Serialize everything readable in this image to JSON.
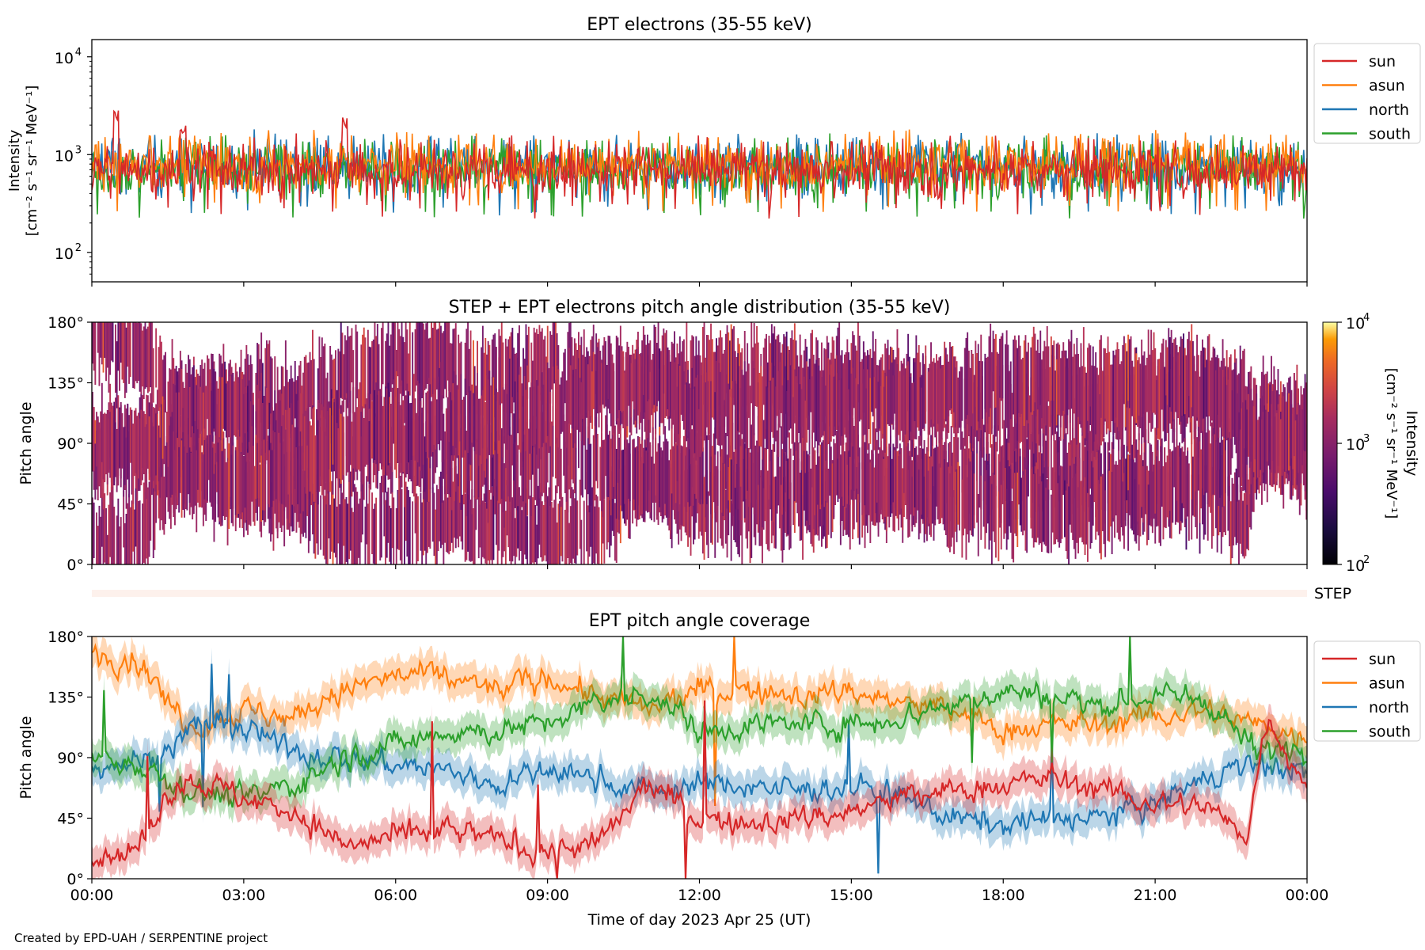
{
  "figure": {
    "credit": "Created by EPD-UAH / SERPENTINE project",
    "colors": {
      "sun": "#d62728",
      "asun": "#ff7f0e",
      "north": "#1f77b4",
      "south": "#2ca02c"
    }
  },
  "chart_data": [
    {
      "type": "line",
      "title": "EPT electrons (35-55 keV)",
      "ylabel": [
        "Intensity",
        "[cm⁻² s⁻¹ sr⁻¹ MeV⁻¹]"
      ],
      "yscale": "log",
      "ylim": [
        50,
        15000
      ],
      "yticks": [
        {
          "value": 100,
          "base": "10",
          "exp": "2"
        },
        {
          "value": 1000,
          "base": "10",
          "exp": "3"
        },
        {
          "value": 10000,
          "base": "10",
          "exp": "4"
        }
      ],
      "xlim_hours": [
        0,
        24
      ],
      "legend": {
        "placement": "outside-right"
      },
      "series": [
        {
          "name": "sun",
          "color": "#d62728",
          "typical": 700,
          "spikes": [
            {
              "t_hours": 0.48,
              "value": 3000
            },
            {
              "t_hours": 5.0,
              "value": 2500
            },
            {
              "t_hours": 1.8,
              "value": 2000
            }
          ]
        },
        {
          "name": "asun",
          "color": "#ff7f0e",
          "typical": 800
        },
        {
          "name": "north",
          "color": "#1f77b4",
          "typical": 750
        },
        {
          "name": "south",
          "color": "#2ca02c",
          "typical": 700
        }
      ]
    },
    {
      "type": "heatmap",
      "title": "STEP + EPT electrons pitch angle distribution (35-55 keV)",
      "ylabel": "Pitch angle",
      "ylim": [
        0,
        180
      ],
      "yticks": [
        "0°",
        "45°",
        "90°",
        "135°",
        "180°"
      ],
      "xlim_hours": [
        0,
        24
      ],
      "colorbar": {
        "label": "Intensity",
        "units": "[cm⁻² s⁻¹ sr⁻¹ MeV⁻¹]",
        "scale": "log",
        "range": [
          100,
          10000
        ],
        "colormap": "inferno",
        "ticks": [
          {
            "base": "10",
            "exp": "2"
          },
          {
            "base": "10",
            "exp": "3"
          },
          {
            "base": "10",
            "exp": "4"
          }
        ]
      },
      "typical_intensity": 700
    },
    {
      "type": "table",
      "strip_label": "STEP"
    },
    {
      "type": "line",
      "title": "EPT pitch angle coverage",
      "ylabel": "Pitch angle",
      "ylim": [
        0,
        180
      ],
      "yticks": [
        "0°",
        "45°",
        "90°",
        "135°",
        "180°"
      ],
      "xlabel": "Time of day 2023 Apr 25 (UT)",
      "xlim_hours": [
        0,
        24
      ],
      "xticks": [
        "00:00",
        "03:00",
        "06:00",
        "09:00",
        "12:00",
        "15:00",
        "18:00",
        "21:00",
        "00:00"
      ],
      "legend": {
        "placement": "outside-right"
      },
      "series": [
        {
          "name": "sun",
          "color": "#d62728",
          "x_hours": [
            0,
            1,
            1.5,
            2,
            3,
            4,
            5,
            6,
            7,
            8,
            9,
            10,
            11,
            12,
            13,
            14,
            15,
            16,
            17,
            18,
            19,
            20,
            21,
            22,
            22.8,
            23.2,
            24
          ],
          "values": [
            15,
            25,
            65,
            75,
            60,
            50,
            25,
            30,
            35,
            30,
            20,
            25,
            70,
            45,
            40,
            45,
            50,
            60,
            65,
            70,
            75,
            65,
            55,
            55,
            30,
            120,
            70
          ]
        },
        {
          "name": "asun",
          "color": "#ff7f0e",
          "x_hours": [
            0,
            1,
            1.5,
            2,
            3,
            4,
            5,
            6,
            7,
            8,
            9,
            10,
            11,
            12,
            13,
            14,
            15,
            16,
            17,
            18,
            19,
            20,
            21,
            22,
            23,
            24
          ],
          "values": [
            170,
            160,
            130,
            115,
            125,
            120,
            140,
            150,
            150,
            140,
            150,
            135,
            125,
            140,
            140,
            135,
            140,
            130,
            125,
            110,
            115,
            115,
            120,
            125,
            115,
            105
          ]
        },
        {
          "name": "north",
          "color": "#1f77b4",
          "x_hours": [
            0,
            1,
            1.5,
            2,
            3,
            4,
            5,
            6,
            7,
            8,
            9,
            10,
            11,
            12,
            13,
            14,
            15,
            16,
            17,
            18,
            19,
            20,
            21,
            22,
            23,
            24
          ],
          "values": [
            85,
            88,
            95,
            115,
            110,
            95,
            90,
            85,
            80,
            70,
            80,
            75,
            65,
            70,
            70,
            65,
            70,
            60,
            45,
            40,
            45,
            45,
            55,
            75,
            85,
            80
          ]
        },
        {
          "name": "south",
          "color": "#2ca02c",
          "x_hours": [
            0,
            1,
            1.5,
            2,
            3,
            4,
            5,
            6,
            7,
            8,
            9,
            10,
            11,
            12,
            13,
            14,
            15,
            16,
            17,
            18,
            19,
            20,
            21,
            22,
            23,
            24
          ],
          "values": [
            90,
            85,
            75,
            65,
            60,
            70,
            90,
            100,
            110,
            110,
            115,
            130,
            140,
            110,
            115,
            115,
            115,
            120,
            130,
            140,
            135,
            130,
            135,
            135,
            95,
            100
          ]
        }
      ]
    }
  ]
}
